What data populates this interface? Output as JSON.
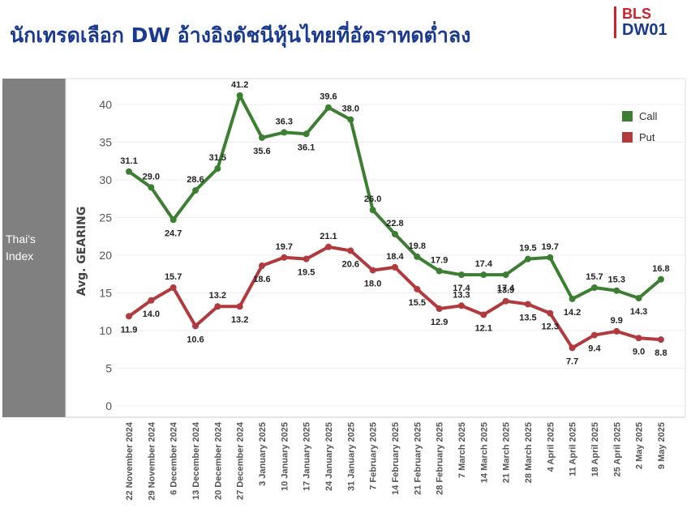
{
  "header": {
    "title": "นักเทรดเลือก DW อ้างอิงดัชนีหุ้นไทยที่อัตราทดต่ำลง",
    "brand_top": "BLS",
    "brand_bottom": "DW01"
  },
  "side_panel": {
    "label_line1": "Thai's",
    "label_line2": "Index"
  },
  "colors": {
    "call": "#3c7e32",
    "put": "#b03a3e",
    "title": "#1a3a8f",
    "brand_red": "#d0202a"
  },
  "chart_data": {
    "type": "line",
    "ylabel": "Avg. GEARING",
    "xlabel": "",
    "ylim": [
      0,
      42
    ],
    "yticks": [
      0,
      5,
      10,
      15,
      20,
      25,
      30,
      35,
      40
    ],
    "grid": true,
    "legend_position": "top-right",
    "categories": [
      "22 November 2024",
      "29 November 2024",
      "6 December 2024",
      "13 December 2024",
      "20 December 2024",
      "27 December 2024",
      "3 January 2025",
      "10 January 2025",
      "17 January 2025",
      "24 January 2025",
      "31 January 2025",
      "7 February 2025",
      "14 February 2025",
      "21 February 2025",
      "28 February 2025",
      "7 March 2025",
      "14 March 2025",
      "21 March 2025",
      "28 March 2025",
      "4 April 2025",
      "11 April 2025",
      "18 April 2025",
      "25 April 2025",
      "2 May 2025",
      "9 May 2025"
    ],
    "series": [
      {
        "name": "Call",
        "color": "#3c7e32",
        "values": [
          31.1,
          29.0,
          24.7,
          28.6,
          31.5,
          41.2,
          35.6,
          36.3,
          36.1,
          39.6,
          38.0,
          26.0,
          22.8,
          19.8,
          17.9,
          17.4,
          17.4,
          17.4,
          19.5,
          19.7,
          14.2,
          15.7,
          15.3,
          14.3,
          16.8
        ]
      },
      {
        "name": "Put",
        "color": "#b03a3e",
        "values": [
          11.9,
          14.0,
          15.7,
          10.6,
          13.2,
          13.2,
          18.6,
          19.7,
          19.5,
          21.1,
          20.6,
          18.0,
          18.4,
          15.5,
          12.9,
          13.3,
          12.1,
          13.9,
          13.5,
          12.3,
          7.7,
          9.4,
          9.9,
          9.0,
          8.8
        ]
      }
    ]
  }
}
